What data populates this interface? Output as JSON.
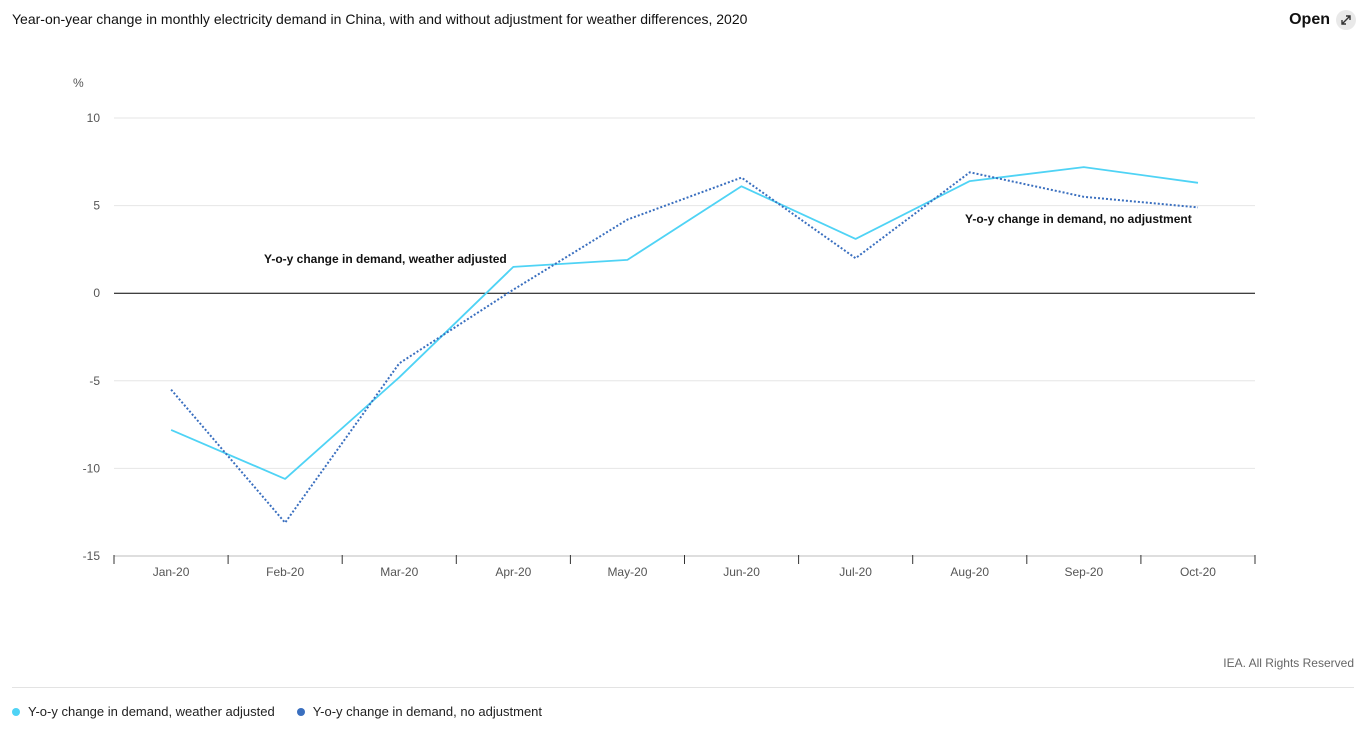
{
  "header": {
    "title": "Year-on-year change in monthly electricity demand in China, with and without adjustment for weather differences, 2020",
    "open_label": "Open"
  },
  "footer": {
    "credit": "IEA. All Rights Reserved"
  },
  "colors": {
    "weather_adjusted": "#4fd3f5",
    "no_adjustment": "#3a6fbf"
  },
  "chart_data": {
    "type": "line",
    "title": "Year-on-year change in monthly electricity demand in China, with and without adjustment for weather differences, 2020",
    "unit": "%",
    "categories": [
      "Jan-20",
      "Feb-20",
      "Mar-20",
      "Apr-20",
      "May-20",
      "Jun-20",
      "Jul-20",
      "Aug-20",
      "Sep-20",
      "Oct-20"
    ],
    "ylim": [
      -15,
      10
    ],
    "yticks": [
      -15,
      -10,
      -5,
      0,
      5,
      10
    ],
    "grid": true,
    "legend_position": "bottom-left",
    "series": [
      {
        "name": "Y-o-y change in demand, weather adjusted",
        "style": "solid",
        "values": [
          -7.8,
          -10.6,
          -4.8,
          1.5,
          1.9,
          6.1,
          3.1,
          6.4,
          7.2,
          6.3
        ]
      },
      {
        "name": "Y-o-y change in demand, no adjustment",
        "style": "dotted",
        "values": [
          -5.5,
          -13.1,
          -4.0,
          0.2,
          4.2,
          6.6,
          2.0,
          6.9,
          5.5,
          4.9
        ]
      }
    ],
    "annotations": [
      "Y-o-y change in demand, weather adjusted",
      "Y-o-y change in demand, no adjustment"
    ]
  }
}
